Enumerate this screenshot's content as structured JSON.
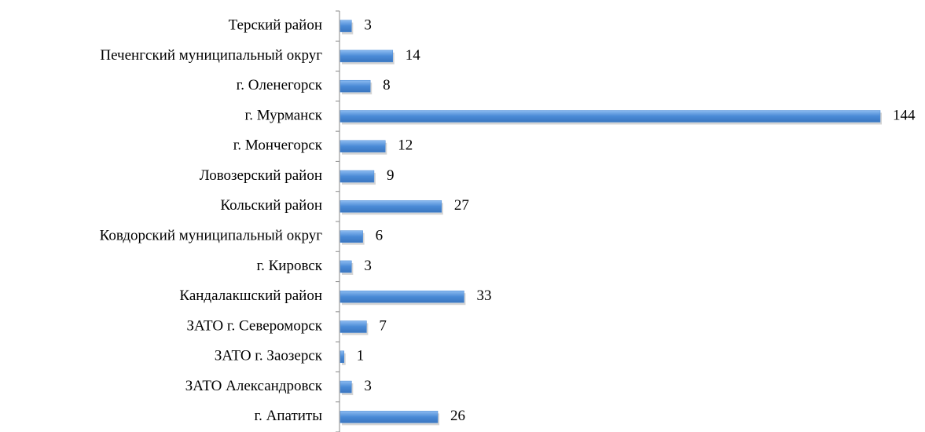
{
  "chart_data": {
    "type": "bar",
    "orientation": "horizontal",
    "color": "#4a8ad6",
    "categories": [
      "Терский район",
      "Печенгский муниципальный округ",
      "г. Оленегорск",
      "г. Мурманск",
      "г. Мончегорск",
      "Ловозерский район",
      "Кольский район",
      "Ковдорский муниципальный округ",
      "г. Кировск",
      "Кандалакшский район",
      "ЗАТО г. Североморск",
      "ЗАТО г. Заозерск",
      "ЗАТО Александровск",
      "г. Апатиты"
    ],
    "values": [
      3,
      14,
      8,
      144,
      12,
      9,
      27,
      6,
      3,
      33,
      7,
      1,
      3,
      26
    ]
  }
}
